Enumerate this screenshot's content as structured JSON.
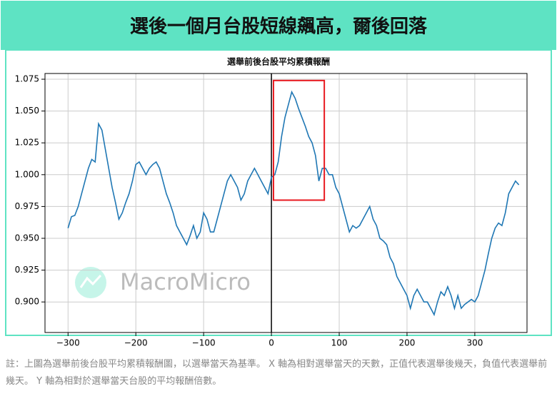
{
  "header": {
    "title": "選後一個月台股短線飆高，爾後回落"
  },
  "chart_data": {
    "type": "line",
    "title": "選舉前後台股平均累積報酬",
    "watermark": "MacroMicro",
    "x": [
      -300,
      -295,
      -290,
      -285,
      -280,
      -275,
      -270,
      -265,
      -260,
      -255,
      -250,
      -245,
      -240,
      -235,
      -230,
      -225,
      -220,
      -215,
      -210,
      -205,
      -200,
      -195,
      -190,
      -185,
      -180,
      -175,
      -170,
      -165,
      -160,
      -155,
      -150,
      -145,
      -140,
      -135,
      -130,
      -125,
      -120,
      -115,
      -110,
      -105,
      -100,
      -95,
      -90,
      -85,
      -80,
      -75,
      -70,
      -65,
      -60,
      -55,
      -50,
      -45,
      -40,
      -35,
      -30,
      -25,
      -20,
      -15,
      -10,
      -5,
      0,
      5,
      10,
      15,
      20,
      25,
      30,
      35,
      40,
      45,
      50,
      55,
      60,
      65,
      70,
      75,
      80,
      85,
      90,
      95,
      100,
      105,
      110,
      115,
      120,
      125,
      130,
      135,
      140,
      145,
      150,
      155,
      160,
      165,
      170,
      175,
      180,
      185,
      190,
      195,
      200,
      205,
      210,
      215,
      220,
      225,
      230,
      235,
      240,
      245,
      250,
      255,
      260,
      265,
      270,
      275,
      280,
      285,
      290,
      295,
      300,
      305,
      310,
      315,
      320,
      325,
      330,
      335,
      340,
      345,
      350,
      355,
      360,
      365
    ],
    "series": [
      {
        "name": "平均累積報酬",
        "color": "#1f77b4",
        "values": [
          0.958,
          0.967,
          0.968,
          0.975,
          0.985,
          0.995,
          1.005,
          1.012,
          1.01,
          1.04,
          1.035,
          1.02,
          1.005,
          0.99,
          0.978,
          0.965,
          0.97,
          0.978,
          0.985,
          0.995,
          1.008,
          1.01,
          1.005,
          1.0,
          1.005,
          1.008,
          1.01,
          1.005,
          0.995,
          0.985,
          0.978,
          0.97,
          0.96,
          0.955,
          0.95,
          0.945,
          0.952,
          0.96,
          0.95,
          0.955,
          0.97,
          0.965,
          0.955,
          0.955,
          0.965,
          0.975,
          0.985,
          0.995,
          1.0,
          0.995,
          0.99,
          0.98,
          0.985,
          0.995,
          1.0,
          1.005,
          1.0,
          0.995,
          0.99,
          0.985,
          0.998,
          1.0,
          1.01,
          1.03,
          1.045,
          1.055,
          1.065,
          1.06,
          1.052,
          1.045,
          1.038,
          1.03,
          1.025,
          1.015,
          0.995,
          1.005,
          1.005,
          1.0,
          1.0,
          0.99,
          0.985,
          0.975,
          0.965,
          0.955,
          0.96,
          0.958,
          0.96,
          0.965,
          0.97,
          0.975,
          0.965,
          0.96,
          0.95,
          0.948,
          0.945,
          0.935,
          0.93,
          0.92,
          0.915,
          0.91,
          0.905,
          0.895,
          0.905,
          0.91,
          0.905,
          0.9,
          0.9,
          0.895,
          0.89,
          0.9,
          0.908,
          0.905,
          0.912,
          0.905,
          0.895,
          0.905,
          0.895,
          0.898,
          0.9,
          0.902,
          0.9,
          0.905,
          0.915,
          0.925,
          0.938,
          0.95,
          0.958,
          0.962,
          0.96,
          0.97,
          0.985,
          0.99,
          0.995,
          0.992
        ]
      }
    ],
    "xlim": [
      -334,
      377
    ],
    "ylim": [
      0.876,
      1.0795
    ],
    "xticks": [
      {
        "value": -300,
        "label": "−300"
      },
      {
        "value": -200,
        "label": "−200"
      },
      {
        "value": -100,
        "label": "−100"
      },
      0,
      100,
      200,
      300
    ],
    "yticks": [
      {
        "value": 0.9,
        "label": "0.900"
      },
      0.925,
      {
        "value": 0.95,
        "label": "0.950"
      },
      0.975,
      {
        "value": 1.0,
        "label": "1.000"
      },
      1.025,
      {
        "value": 1.05,
        "label": "1.050"
      },
      1.075
    ],
    "grid": true,
    "vline": 0,
    "highlight": {
      "x": [
        3,
        78
      ],
      "y": [
        0.98,
        1.074
      ],
      "color": "#e8191f"
    }
  },
  "footnote": "註：上圖為選舉前後台股平均累積報酬圖，以選舉當天為基準。 X 軸為相對選舉當天的天數，正值代表選舉後幾天，負值代表選舉前幾天。 Y 軸為相對於選舉當天台股的平均報酬倍數。"
}
